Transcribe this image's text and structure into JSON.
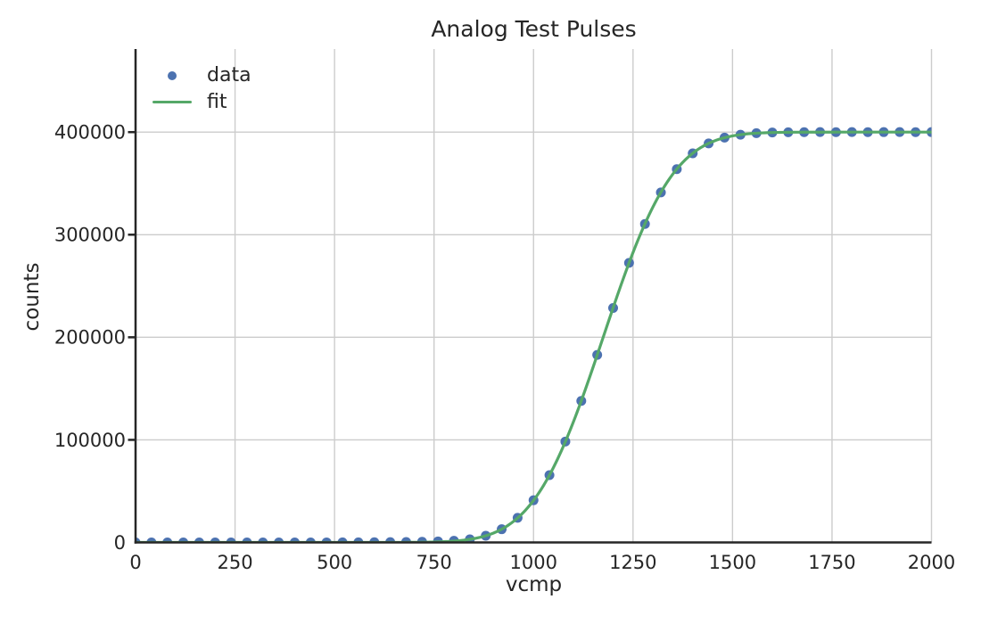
{
  "style": {
    "background": "#ffffff",
    "text_color": "#262626",
    "grid_color": "#cccccc",
    "spine_color": "#262626",
    "data_color": "#4C72B0",
    "fit_color": "#55A868"
  },
  "chart_data": {
    "type": "scatter",
    "title": "Analog Test Pulses",
    "xlabel": "vcmp",
    "ylabel": "counts",
    "xlim": [
      0,
      2000
    ],
    "ylim": [
      0,
      481000
    ],
    "xticks": [
      0,
      250,
      500,
      750,
      1000,
      1250,
      1500,
      1750,
      2000
    ],
    "yticks": [
      0,
      100000,
      200000,
      300000,
      400000
    ],
    "grid": true,
    "legend_position": "upper left",
    "series": [
      {
        "name": "data",
        "type": "scatter",
        "color": "#4C72B0",
        "x": [
          0,
          40,
          80,
          120,
          160,
          200,
          240,
          280,
          320,
          360,
          400,
          440,
          480,
          520,
          560,
          600,
          640,
          680,
          720,
          760,
          800,
          840,
          880,
          920,
          960,
          1000,
          1040,
          1080,
          1120,
          1160,
          1200,
          1240,
          1280,
          1320,
          1360,
          1400,
          1440,
          1480,
          1520,
          1560,
          1600,
          1640,
          1680,
          1720,
          1760,
          1800,
          1840,
          1880,
          1920,
          1960,
          2000
        ],
        "y": [
          0,
          0,
          0,
          0,
          0,
          0,
          0,
          0,
          10,
          10,
          20,
          30,
          50,
          80,
          120,
          180,
          280,
          430,
          670,
          1020,
          1650,
          3080,
          6500,
          12880,
          23990,
          41120,
          65600,
          98350,
          137960,
          182830,
          228590,
          272510,
          310420,
          341190,
          363930,
          379350,
          389020,
          394630,
          397480,
          398950,
          399620,
          399850,
          399960,
          400050,
          399970,
          400080,
          399940,
          400020,
          400070,
          399950,
          400030
        ]
      },
      {
        "name": "fit",
        "type": "line",
        "color": "#55A868",
        "model": "amplitude/2 * (1 + erf((x - mu) / (sigma * sqrt(2))))",
        "amplitude": 400000,
        "mu": 1175,
        "sigma": 138
      }
    ]
  }
}
